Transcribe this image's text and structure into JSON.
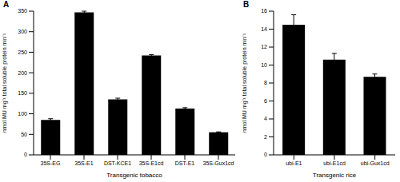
{
  "chart_data": [
    {
      "type": "bar",
      "title": "A",
      "x_label": "Transgenic tobacco",
      "y_label": "nmol MU mg⁻¹ total soluble protein min⁻¹",
      "categories": [
        "35S-EG",
        "35S-E1",
        "DST-KCE1",
        "35S-E1cd",
        "DST-E1",
        "35S-Gux1cd"
      ],
      "values": [
        85,
        347,
        135,
        242,
        113,
        55
      ],
      "errors": [
        3,
        3,
        3,
        2,
        2,
        1
      ],
      "color": "#000000",
      "ylim": [
        0,
        350
      ],
      "yticks": [
        0,
        50,
        100,
        150,
        200,
        250,
        300,
        350
      ],
      "grid": false
    },
    {
      "type": "bar",
      "title": "B",
      "x_label": "Transgenic rice",
      "y_label": "nmol MU mg⁻¹ total soluble protein min⁻¹",
      "categories": [
        "ubi-E1",
        "ubi-E1cd",
        "ubi-Gux1cd"
      ],
      "values": [
        14.5,
        10.6,
        8.7
      ],
      "errors": [
        1.1,
        0.7,
        0.3
      ],
      "color": "#000000",
      "ylim": [
        0,
        16
      ],
      "yticks": [
        0,
        2,
        4,
        6,
        8,
        10,
        12,
        14,
        16
      ],
      "grid": false
    }
  ]
}
